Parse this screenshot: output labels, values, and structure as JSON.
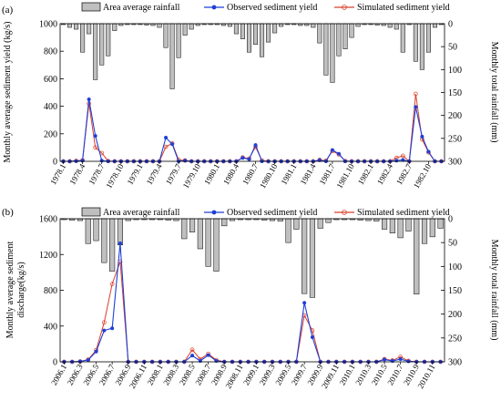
{
  "chart_data": [
    {
      "type": "bar+line",
      "panel_label": "(a)",
      "legend": {
        "placement": "top",
        "bar_label": "Area average rainfall",
        "observed_label": "Observed sediment yield",
        "simulated_label": "Simulated sediment yield"
      },
      "ylabel_left": "Monthly average sediment yield (kg/s)",
      "ylabel_right": "Monthly total rainfall (mm)",
      "ylim_left": [
        0,
        1000
      ],
      "ylim_right_inverted": [
        0,
        300
      ],
      "left_ticks": [
        0,
        200,
        400,
        600,
        800,
        1000
      ],
      "right_ticks": [
        0,
        50,
        100,
        150,
        200,
        250,
        300
      ],
      "x_tick_labels": [
        "1978.1",
        "1978.4",
        "1978.7",
        "1978.10",
        "1979.1",
        "1979.4",
        "1979.7",
        "1979.10",
        "1980.1",
        "1980.4",
        "1980.7",
        "1980.10",
        "1981.1",
        "1981.4",
        "1981.7",
        "1981.10",
        "1982.1",
        "1982.4",
        "1982.7",
        "1982.10"
      ],
      "x_tick_every": 3,
      "colors": {
        "bar": "#bfbfbf",
        "observed": "#1f3fd6",
        "simulated": "#d9402a"
      },
      "rainfall": [
        2,
        8,
        12,
        62,
        22,
        122,
        90,
        70,
        15,
        4,
        2,
        2,
        2,
        3,
        4,
        8,
        52,
        142,
        74,
        25,
        12,
        4,
        2,
        2,
        2,
        4,
        6,
        22,
        33,
        62,
        45,
        72,
        40,
        20,
        6,
        2,
        2,
        4,
        4,
        8,
        42,
        112,
        128,
        70,
        55,
        30,
        6,
        2,
        2,
        3,
        4,
        8,
        12,
        62,
        2,
        82,
        100,
        62,
        8,
        2
      ],
      "observed": [
        0,
        0,
        2,
        5,
        450,
        185,
        5,
        0,
        0,
        0,
        0,
        0,
        0,
        0,
        0,
        0,
        172,
        125,
        0,
        5,
        0,
        0,
        0,
        0,
        0,
        0,
        0,
        0,
        25,
        15,
        118,
        0,
        0,
        0,
        0,
        0,
        0,
        0,
        0,
        0,
        8,
        0,
        82,
        55,
        0,
        0,
        0,
        0,
        0,
        0,
        0,
        0,
        5,
        10,
        0,
        395,
        180,
        70,
        0,
        0
      ],
      "simulated": [
        0,
        0,
        3,
        8,
        420,
        100,
        60,
        2,
        0,
        0,
        0,
        0,
        0,
        0,
        0,
        0,
        105,
        130,
        10,
        6,
        0,
        0,
        0,
        0,
        0,
        0,
        0,
        0,
        28,
        20,
        105,
        6,
        0,
        0,
        0,
        0,
        0,
        0,
        0,
        0,
        10,
        5,
        75,
        50,
        2,
        0,
        0,
        0,
        0,
        0,
        0,
        0,
        25,
        40,
        0,
        490,
        160,
        65,
        0,
        0
      ]
    },
    {
      "type": "bar+line",
      "panel_label": "(b)",
      "legend": {
        "placement": "top",
        "bar_label": "Area average rainfall",
        "observed_label": "Observed sediment yield",
        "simulated_label": "Simulated sediment yield"
      },
      "ylabel_left_line1": "Monthly average sediment",
      "ylabel_left_line2": "discharge(kg/s)",
      "ylabel_right": "Monthly total rainfall (mm)",
      "ylim_left": [
        0,
        1600
      ],
      "ylim_right_inverted": [
        0,
        300
      ],
      "left_ticks": [
        0,
        400,
        800,
        1200,
        1600
      ],
      "right_ticks": [
        0,
        50,
        100,
        150,
        200,
        250,
        300
      ],
      "x_tick_labels": [
        "2006.1",
        "2006.3",
        "2006.5",
        "2006.7",
        "2006.9",
        "2006.11",
        "2008.1",
        "2008.3",
        "2008.5",
        "2008.7",
        "2008.9",
        "2008.11",
        "2009.1",
        "2009.3",
        "2009.5",
        "2009.7",
        "2009.9",
        "2009.11",
        "2010.1",
        "2010.3",
        "2010.5",
        "2010.7",
        "2010.9",
        "2010.11"
      ],
      "x_tick_every": 2,
      "colors": {
        "bar": "#bfbfbf",
        "observed": "#1f3fd6",
        "simulated": "#d9402a"
      },
      "rainfall": [
        2,
        3,
        4,
        52,
        46,
        92,
        110,
        55,
        4,
        2,
        2,
        2,
        2,
        3,
        4,
        42,
        28,
        63,
        100,
        110,
        15,
        4,
        2,
        2,
        2,
        3,
        4,
        5,
        50,
        22,
        157,
        165,
        20,
        8,
        2,
        2,
        2,
        3,
        4,
        5,
        22,
        30,
        40,
        26,
        158,
        52,
        38,
        20
      ],
      "observed": [
        0,
        0,
        5,
        20,
        115,
        350,
        375,
        1325,
        0,
        0,
        0,
        0,
        0,
        0,
        0,
        0,
        70,
        10,
        75,
        10,
        0,
        0,
        0,
        0,
        0,
        0,
        0,
        0,
        0,
        0,
        660,
        275,
        0,
        0,
        0,
        0,
        0,
        0,
        0,
        0,
        25,
        10,
        30,
        5,
        0,
        0,
        0,
        0
      ],
      "simulated": [
        0,
        0,
        4,
        25,
        130,
        440,
        870,
        1120,
        0,
        0,
        0,
        0,
        0,
        0,
        0,
        0,
        135,
        30,
        90,
        20,
        0,
        0,
        0,
        0,
        0,
        0,
        0,
        0,
        0,
        0,
        520,
        350,
        0,
        0,
        0,
        0,
        0,
        0,
        0,
        0,
        30,
        15,
        55,
        10,
        0,
        0,
        0,
        0
      ]
    }
  ]
}
